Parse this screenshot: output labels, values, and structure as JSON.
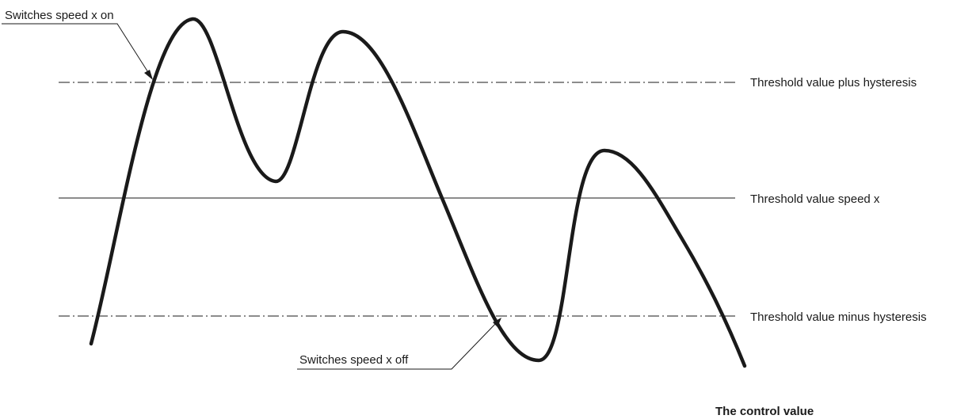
{
  "labels": {
    "switch_on": "Switches speed x on",
    "switch_off": "Switches speed x off",
    "upper_threshold": "Threshold value plus hysteresis",
    "threshold": "Threshold value speed x",
    "lower_threshold": "Threshold value minus hysteresis",
    "control_value": "The control value"
  },
  "colors": {
    "line": "#1a1a1a",
    "background": "#ffffff"
  }
}
